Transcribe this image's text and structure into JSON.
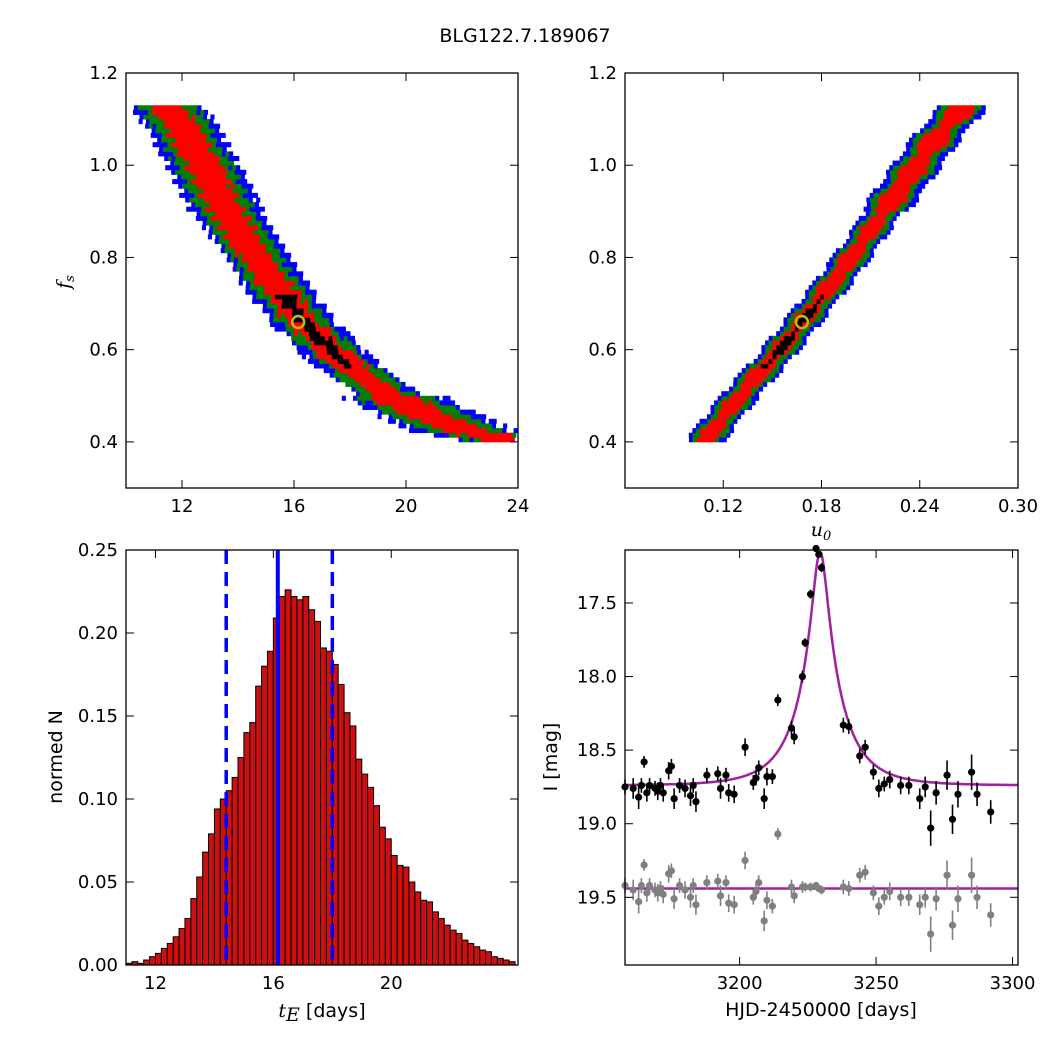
{
  "figure": {
    "title": "BLG122.7.189067"
  },
  "colors": {
    "blue": "#0000ff",
    "green": "#007f00",
    "red": "#ff0000",
    "black": "#000000",
    "marker": "#bfbf00",
    "model": "#a020a0",
    "gray": "#808080",
    "hist_fill": "#cc1010"
  },
  "chart_data": [
    {
      "type": "heatmap",
      "panel": "top-left",
      "xlabel": "",
      "ylabel": "f_s",
      "ylabel_main": "f",
      "ylabel_sub": "s",
      "xlim": [
        10,
        24
      ],
      "ylim": [
        0.3,
        1.2
      ],
      "xticks": [
        "12",
        "16",
        "20",
        "24"
      ],
      "yticks": [
        "0.4",
        "0.6",
        "0.8",
        "1.0",
        "1.2"
      ],
      "best_fit": {
        "x": 16.15,
        "y": 0.66
      },
      "confidence_regions": "blue (outer), green, red, black (inner)",
      "ridge": {
        "x": [
          11.5,
          12.5,
          13.5,
          15.0,
          16.2,
          17.5,
          19.0,
          20.5,
          22.0,
          23.5
        ],
        "y": [
          1.12,
          1.02,
          0.9,
          0.76,
          0.66,
          0.58,
          0.51,
          0.46,
          0.42,
          0.4
        ]
      }
    },
    {
      "type": "heatmap",
      "panel": "top-right",
      "xlabel": "u_0",
      "xlabel_main": "u",
      "xlabel_sub": "0",
      "ylabel": "",
      "xlim": [
        0.06,
        0.3
      ],
      "ylim": [
        0.3,
        1.2
      ],
      "xticks": [
        "0.12",
        "0.18",
        "0.24",
        "0.30"
      ],
      "yticks": [
        "0.4",
        "0.6",
        "0.8",
        "1.0",
        "1.2"
      ],
      "best_fit": {
        "x": 0.168,
        "y": 0.66
      },
      "confidence_regions": "blue (outer), green, red, black (inner)",
      "ridge": {
        "x": [
          0.108,
          0.13,
          0.15,
          0.168,
          0.19,
          0.21,
          0.23,
          0.25,
          0.265
        ],
        "y": [
          0.4,
          0.5,
          0.58,
          0.66,
          0.76,
          0.86,
          0.96,
          1.06,
          1.12
        ]
      }
    },
    {
      "type": "bar",
      "panel": "bottom-left",
      "xlabel": "t_E [days]",
      "xlabel_main": "t",
      "xlabel_sub": "E",
      "xlabel_unit": " [days]",
      "ylabel": "normed N",
      "xlim": [
        11,
        24.3
      ],
      "ylim": [
        0,
        0.25
      ],
      "xticks": [
        "12",
        "16",
        "20"
      ],
      "yticks": [
        "0.00",
        "0.05",
        "0.10",
        "0.15",
        "0.20",
        "0.25"
      ],
      "bin_start": 11.0,
      "bin_width": 0.2,
      "values": [
        0.001,
        0.002,
        0.001,
        0.003,
        0.005,
        0.007,
        0.01,
        0.013,
        0.017,
        0.022,
        0.028,
        0.04,
        0.053,
        0.068,
        0.079,
        0.094,
        0.1,
        0.105,
        0.113,
        0.125,
        0.14,
        0.146,
        0.168,
        0.18,
        0.189,
        0.209,
        0.222,
        0.226,
        0.222,
        0.22,
        0.222,
        0.214,
        0.207,
        0.191,
        0.189,
        0.181,
        0.169,
        0.152,
        0.144,
        0.124,
        0.115,
        0.107,
        0.096,
        0.083,
        0.076,
        0.066,
        0.06,
        0.059,
        0.05,
        0.044,
        0.039,
        0.038,
        0.032,
        0.028,
        0.024,
        0.021,
        0.019,
        0.015,
        0.013,
        0.011,
        0.009,
        0.008,
        0.005,
        0.004,
        0.003,
        0.002,
        0.001,
        0.001
      ],
      "best_value": 16.15,
      "lower_bound": 14.4,
      "upper_bound": 18.0
    },
    {
      "type": "scatter",
      "panel": "bottom-right",
      "xlabel": "HJD-2450000 [days]",
      "ylabel": "I [mag]",
      "xlim": [
        3158,
        3302
      ],
      "ylim": [
        19.96,
        17.14
      ],
      "xticks": [
        "3200",
        "3250",
        "3300"
      ],
      "yticks": [
        "17.5",
        "18.0",
        "18.5",
        "19.0",
        "19.5"
      ],
      "model": {
        "t0": 3229.5,
        "tE": 16.15,
        "u0": 0.168,
        "fs": 0.66,
        "baseline": 18.74
      },
      "residual_model_level": 19.44,
      "series": [
        {
          "color": "black",
          "t": [
            3158,
            3161,
            3163,
            3164,
            3165,
            3166,
            3167,
            3169,
            3170,
            3171,
            3172,
            3174,
            3175,
            3176,
            3178,
            3180,
            3182,
            3183,
            3184,
            3188,
            3192,
            3193,
            3195,
            3196,
            3198,
            3202,
            3205,
            3206,
            3207,
            3209,
            3210,
            3212,
            3214,
            3219,
            3220,
            3223,
            3224,
            3226,
            3228,
            3229,
            3230,
            3238,
            3240,
            3244,
            3246,
            3249,
            3251,
            3253,
            3255,
            3259,
            3262,
            3266,
            3268,
            3270,
            3272,
            3276,
            3278,
            3280,
            3285,
            3287,
            3292
          ],
          "mag": [
            18.75,
            18.76,
            18.82,
            18.74,
            18.58,
            18.79,
            18.74,
            18.76,
            18.78,
            18.74,
            18.79,
            18.64,
            18.61,
            18.83,
            18.74,
            18.76,
            18.81,
            18.74,
            18.85,
            18.67,
            18.66,
            18.76,
            18.67,
            18.79,
            18.8,
            18.48,
            18.72,
            18.69,
            18.62,
            18.83,
            18.68,
            18.68,
            18.16,
            18.35,
            18.41,
            18.0,
            17.77,
            17.44,
            17.13,
            17.17,
            17.26,
            18.33,
            18.34,
            18.54,
            18.48,
            18.65,
            18.76,
            18.73,
            18.7,
            18.74,
            18.74,
            18.83,
            18.75,
            19.03,
            18.79,
            18.67,
            18.97,
            18.8,
            18.65,
            18.8,
            18.92
          ],
          "err": [
            0.05,
            0.07,
            0.08,
            0.05,
            0.04,
            0.06,
            0.05,
            0.05,
            0.06,
            0.05,
            0.06,
            0.06,
            0.05,
            0.07,
            0.05,
            0.06,
            0.07,
            0.05,
            0.07,
            0.05,
            0.05,
            0.07,
            0.05,
            0.06,
            0.06,
            0.06,
            0.05,
            0.05,
            0.05,
            0.07,
            0.06,
            0.05,
            0.04,
            0.05,
            0.05,
            0.04,
            0.03,
            0.03,
            0.02,
            0.02,
            0.03,
            0.05,
            0.05,
            0.05,
            0.05,
            0.05,
            0.06,
            0.05,
            0.06,
            0.06,
            0.06,
            0.07,
            0.07,
            0.12,
            0.08,
            0.1,
            0.1,
            0.09,
            0.12,
            0.08,
            0.08
          ]
        },
        {
          "color": "gray",
          "t": [
            3158,
            3161,
            3163,
            3164,
            3165,
            3166,
            3167,
            3169,
            3170,
            3171,
            3172,
            3174,
            3175,
            3176,
            3178,
            3180,
            3182,
            3183,
            3184,
            3188,
            3192,
            3193,
            3195,
            3196,
            3198,
            3202,
            3205,
            3206,
            3207,
            3209,
            3210,
            3212,
            3214,
            3219,
            3220,
            3223,
            3224,
            3226,
            3228,
            3229,
            3230,
            3238,
            3240,
            3244,
            3246,
            3249,
            3251,
            3253,
            3255,
            3259,
            3262,
            3266,
            3268,
            3270,
            3272,
            3276,
            3278,
            3280,
            3285,
            3287,
            3292
          ],
          "mag": [
            19.42,
            19.45,
            19.53,
            19.42,
            19.28,
            19.47,
            19.42,
            19.45,
            19.47,
            19.44,
            19.48,
            19.34,
            19.32,
            19.51,
            19.42,
            19.45,
            19.5,
            19.42,
            19.55,
            19.4,
            19.39,
            19.49,
            19.4,
            19.54,
            19.55,
            19.25,
            19.5,
            19.46,
            19.4,
            19.66,
            19.52,
            19.56,
            19.07,
            19.43,
            19.49,
            19.43,
            19.43,
            19.43,
            19.42,
            19.44,
            19.45,
            19.43,
            19.44,
            19.35,
            19.33,
            19.47,
            19.56,
            19.5,
            19.46,
            19.5,
            19.5,
            19.55,
            19.5,
            19.75,
            19.51,
            19.35,
            19.69,
            19.51,
            19.35,
            19.5,
            19.62
          ],
          "err": [
            0.05,
            0.07,
            0.08,
            0.05,
            0.04,
            0.06,
            0.05,
            0.05,
            0.06,
            0.05,
            0.06,
            0.06,
            0.05,
            0.07,
            0.05,
            0.06,
            0.07,
            0.05,
            0.07,
            0.05,
            0.05,
            0.07,
            0.05,
            0.06,
            0.06,
            0.06,
            0.05,
            0.05,
            0.05,
            0.07,
            0.06,
            0.05,
            0.04,
            0.05,
            0.05,
            0.04,
            0.03,
            0.03,
            0.02,
            0.02,
            0.03,
            0.05,
            0.05,
            0.05,
            0.05,
            0.05,
            0.06,
            0.05,
            0.06,
            0.06,
            0.06,
            0.07,
            0.07,
            0.12,
            0.08,
            0.1,
            0.1,
            0.09,
            0.12,
            0.08,
            0.08
          ]
        }
      ]
    }
  ]
}
